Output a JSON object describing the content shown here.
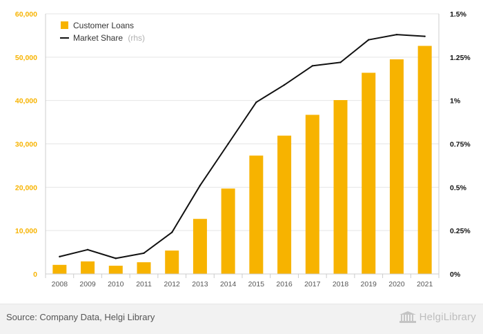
{
  "chart_data": {
    "type": "bar",
    "categories": [
      "2008",
      "2009",
      "2010",
      "2011",
      "2012",
      "2013",
      "2014",
      "2015",
      "2016",
      "2017",
      "2018",
      "2019",
      "2020",
      "2021"
    ],
    "series": [
      {
        "name": "Customer Loans",
        "type": "bar",
        "axis": "left",
        "color": "#f7b300",
        "values": [
          2100,
          2900,
          1900,
          2700,
          5400,
          12700,
          19700,
          27300,
          31900,
          36700,
          40100,
          46400,
          49500,
          52600
        ]
      },
      {
        "name": "Market Share",
        "type": "line",
        "axis": "right",
        "color": "#111111",
        "values": [
          0.001,
          0.0014,
          0.0009,
          0.0012,
          0.0024,
          0.0051,
          0.0075,
          0.0099,
          0.0109,
          0.012,
          0.0122,
          0.0135,
          0.0138,
          0.0137
        ]
      }
    ],
    "legend": {
      "position": "top-left",
      "entries": [
        {
          "label": "Customer Loans",
          "suffix": ""
        },
        {
          "label": "Market Share",
          "suffix": "(rhs)"
        }
      ]
    },
    "y_left": {
      "ylim": [
        0,
        60000
      ],
      "ticks": [
        0,
        10000,
        20000,
        30000,
        40000,
        50000,
        60000
      ],
      "tick_labels": [
        "0",
        "10,000",
        "20,000",
        "30,000",
        "40,000",
        "50,000",
        "60,000"
      ],
      "color": "#f7b300"
    },
    "y_right": {
      "ylim": [
        0,
        0.015
      ],
      "ticks": [
        0,
        0.0025,
        0.005,
        0.0075,
        0.01,
        0.0125,
        0.015
      ],
      "tick_labels": [
        "0%",
        "0.25%",
        "0.5%",
        "0.75%",
        "1%",
        "1.25%",
        "1.5%"
      ],
      "color": "#111111"
    },
    "grid": true
  },
  "footer": {
    "source": "Source: Company Data, Helgi Library",
    "brand": "HelgiLibrary"
  }
}
